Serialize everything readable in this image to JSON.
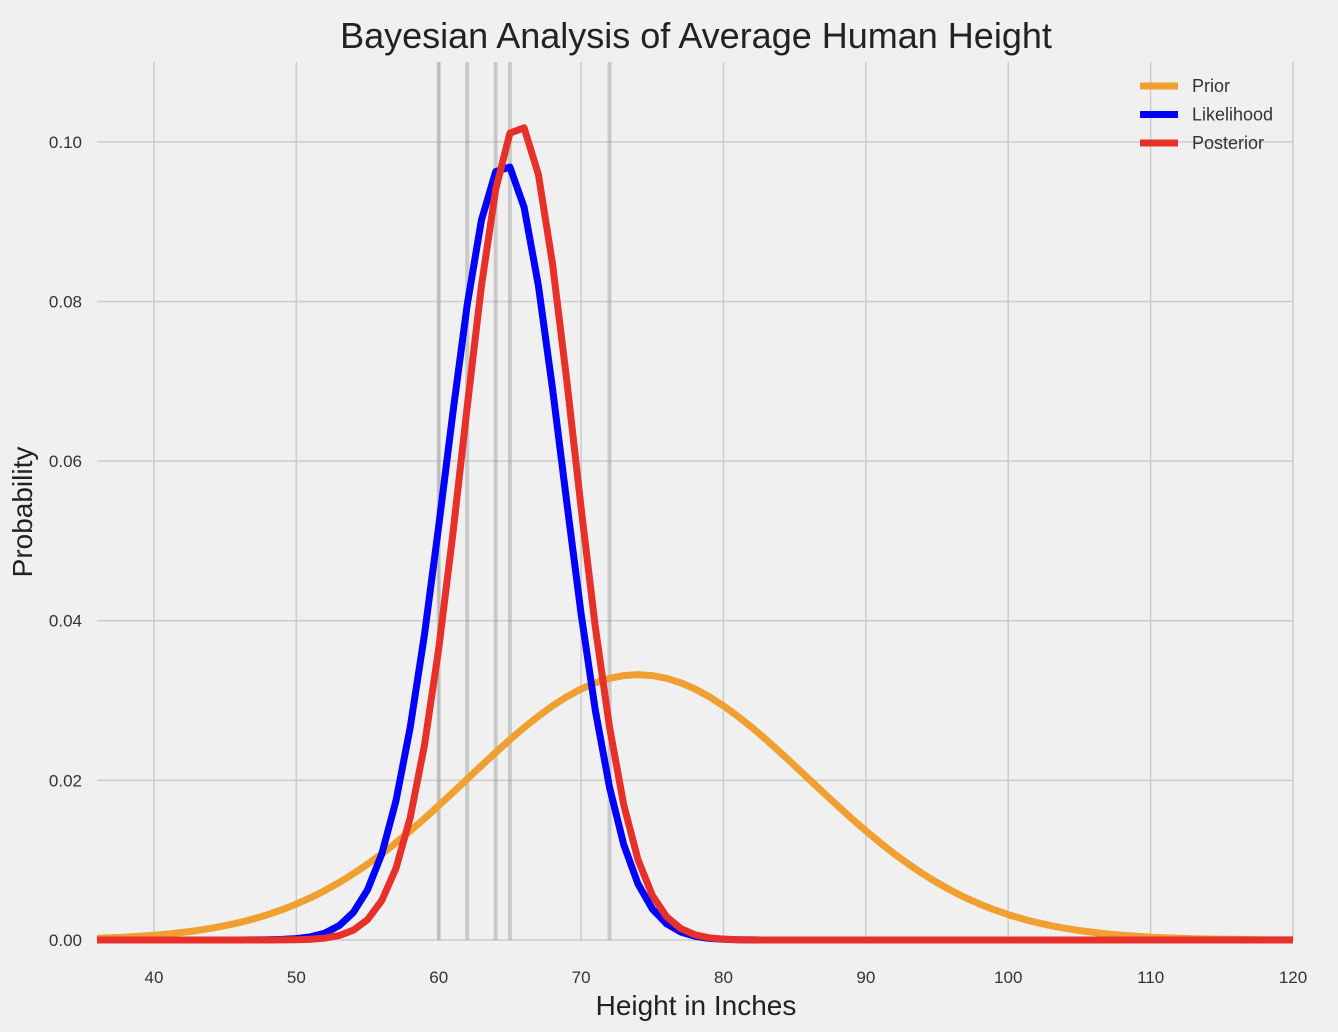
{
  "chart_data": {
    "type": "line",
    "title": "Bayesian Analysis of Average Human Height",
    "xlabel": "Height in Inches",
    "ylabel": "Probability",
    "xlim": [
      36,
      120
    ],
    "ylim": [
      0,
      0.11
    ],
    "xticks": [
      40,
      50,
      60,
      70,
      80,
      90,
      100,
      110,
      120
    ],
    "yticks": [
      0.0,
      0.02,
      0.04,
      0.06,
      0.08,
      0.1
    ],
    "ytick_labels": [
      "0.00",
      "0.02",
      "0.04",
      "0.06",
      "0.08",
      "0.10"
    ],
    "grid": true,
    "legend_position": "top-right",
    "observations": [
      60,
      62,
      64,
      65,
      72
    ],
    "series": [
      {
        "name": "Prior",
        "color": "#f0a030",
        "distribution": "normal",
        "mean": 74,
        "sd": 12
      },
      {
        "name": "Likelihood",
        "color": "#0000ff",
        "distribution": "normal",
        "mean": 64.6,
        "sd": 4.1
      },
      {
        "name": "Posterior",
        "color": "#e8302a",
        "distribution": "normal",
        "mean": 65.6,
        "sd": 3.9
      }
    ]
  }
}
